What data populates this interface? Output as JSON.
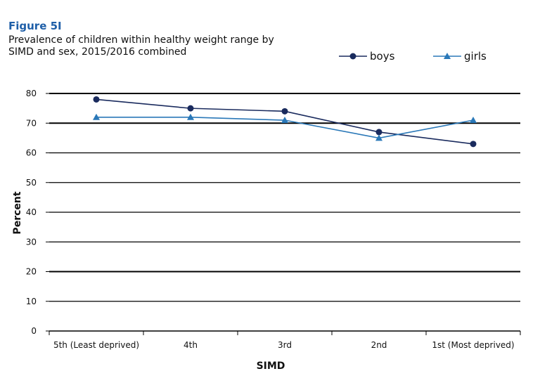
{
  "figure": {
    "label": "Figure 5I",
    "title_line1": "Prevalence of children within healthy weight range by",
    "title_line2": "SIMD and sex, 2015/2016 combined"
  },
  "chart_data": {
    "type": "line",
    "xlabel": "SIMD",
    "ylabel": "Percent",
    "categories": [
      "5th (Least deprived)",
      "4th",
      "3rd",
      "2nd",
      "1st (Most deprived)"
    ],
    "ylim": [
      0,
      80
    ],
    "yticks": [
      0,
      10,
      20,
      30,
      40,
      50,
      60,
      70,
      80
    ],
    "grid": true,
    "legend_position": "top-right",
    "series": [
      {
        "name": "boys",
        "values": [
          78,
          75,
          74,
          67,
          63
        ],
        "color": "#1a2b5e",
        "marker": "circle"
      },
      {
        "name": "girls",
        "values": [
          72,
          72,
          71,
          65,
          71
        ],
        "color": "#2a78b8",
        "marker": "triangle"
      }
    ]
  }
}
